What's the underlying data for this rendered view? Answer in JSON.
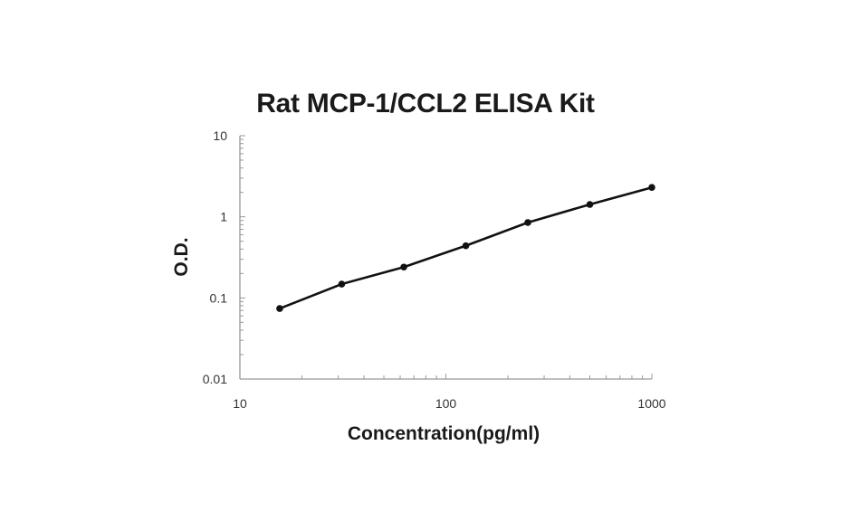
{
  "chart_data": {
    "type": "line",
    "title": "Rat MCP-1/CCL2 ELISA Kit",
    "xlabel": "Concentration(pg/ml)",
    "ylabel": "O.D.",
    "xscale": "log",
    "yscale": "log",
    "xlim": [
      10,
      1000
    ],
    "ylim": [
      0.01,
      10
    ],
    "xticks": [
      "10",
      "100",
      "1000"
    ],
    "yticks": [
      "0.01",
      "0.1",
      "1",
      "10"
    ],
    "grid": false,
    "legend": "none",
    "series": [
      {
        "x": [
          15.6,
          31.2,
          62.5,
          125,
          250,
          500,
          1000
        ],
        "y": [
          0.074,
          0.148,
          0.24,
          0.44,
          0.85,
          1.42,
          2.3
        ],
        "color": "#111111",
        "marker": "circle",
        "fit_line": true
      }
    ]
  }
}
